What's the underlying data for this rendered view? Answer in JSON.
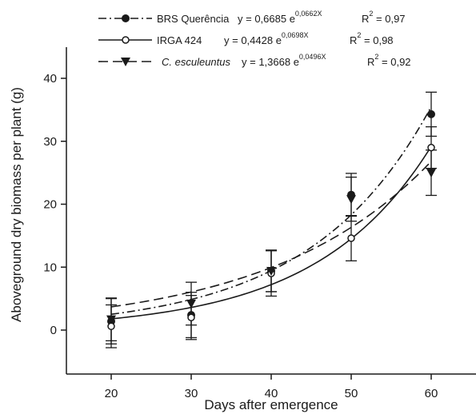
{
  "chart_data": {
    "type": "scatter",
    "xlabel": "Days after emergence",
    "ylabel": "Aboveground dry biomass per plant (g)",
    "xlim": [
      15,
      65
    ],
    "ylim": [
      -5,
      45
    ],
    "xticks": [
      "20",
      "30",
      "40",
      "50",
      "60"
    ],
    "yticks": [
      "0",
      "10",
      "20",
      "30",
      "40"
    ],
    "grid": false,
    "legend_position": "top",
    "x": [
      20,
      30,
      40,
      50,
      60
    ],
    "series": [
      {
        "name": "BRS Querência",
        "name_italic": false,
        "marker": "filled-circle",
        "line_style": "dash-dot",
        "color": "#1a1a1a",
        "values": [
          1.4,
          2.4,
          9.4,
          21.5,
          34.3
        ],
        "errors": [
          3.6,
          3.6,
          3.3,
          3.4,
          3.5
        ],
        "fit": {
          "a": 0.6685,
          "b": 0.0662
        },
        "equation": {
          "base": "y = 0,6685 e",
          "exp": "0,0662X",
          "r2_label": "R",
          "r2_exp": "2",
          "r2_value": " = 0,97"
        }
      },
      {
        "name": "IRGA 424",
        "name_italic": false,
        "marker": "open-circle",
        "line_style": "solid",
        "color": "#1a1a1a",
        "values": [
          0.6,
          2.0,
          9.0,
          14.6,
          29.0
        ],
        "errors": [
          3.4,
          3.5,
          3.6,
          3.6,
          3.3
        ],
        "fit": {
          "a": 0.4428,
          "b": 0.0698
        },
        "equation": {
          "base": "y = 0,4428 e",
          "exp": "0,0698X",
          "r2_label": "R",
          "r2_exp": "2",
          "r2_value": " = 0,98"
        }
      },
      {
        "name": "C. esculeuntus",
        "name_italic": true,
        "marker": "filled-triangle-down",
        "line_style": "dashed",
        "color": "#1a1a1a",
        "values": [
          1.7,
          4.2,
          9.4,
          20.8,
          25.0
        ],
        "errors": [
          3.4,
          3.4,
          3.3,
          3.5,
          3.6
        ],
        "fit": {
          "a": 1.3668,
          "b": 0.0496
        },
        "equation": {
          "base": "y = 1,3668 e",
          "exp": "0,0496X",
          "r2_label": "R",
          "r2_exp": "2",
          "r2_value": " = 0,92"
        }
      }
    ]
  }
}
